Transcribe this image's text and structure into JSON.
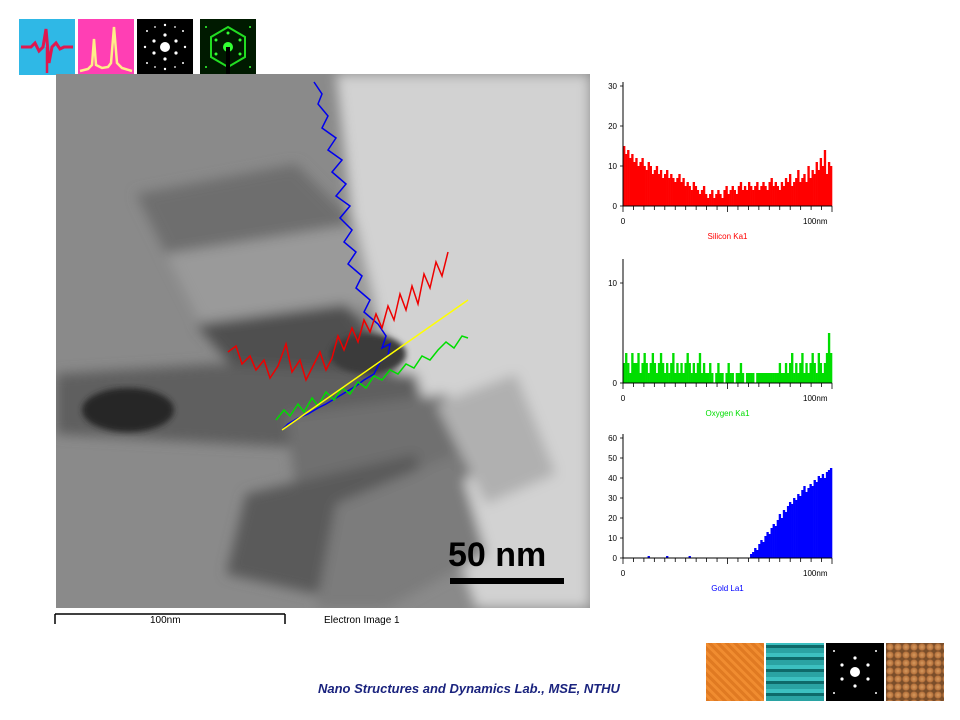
{
  "micrograph": {
    "scalebar_caption": "50 nm",
    "ruler_label": "100nm",
    "image_caption": "Electron Image 1"
  },
  "footer": {
    "lab_name": "Nano Structures and Dynamics Lab., MSE, NTHU"
  },
  "colors": {
    "silicon": "#ff0000",
    "oxygen": "#00dd00",
    "gold": "#0000ff",
    "line_trace": "#ffff00",
    "footer_text": "#1a237e"
  },
  "decor_icons": [
    "waveform-icon",
    "spectrum-peaks-icon",
    "diffraction-pattern-icon",
    "green-diffraction-icon"
  ],
  "chart_data": [
    {
      "type": "bar",
      "title": "Silicon Ka1",
      "ylim": [
        0,
        30
      ],
      "yticks": [
        0,
        10,
        20,
        30
      ],
      "xtick_labels": [
        "0",
        "100nm"
      ],
      "series": [
        {
          "name": "Silicon Ka1",
          "values": [
            15,
            13,
            14,
            12,
            13,
            11,
            12,
            10,
            11,
            12,
            10,
            9,
            11,
            10,
            8,
            9,
            10,
            8,
            9,
            7,
            8,
            9,
            7,
            8,
            7,
            6,
            7,
            8,
            6,
            7,
            5,
            6,
            5,
            4,
            6,
            5,
            4,
            3,
            4,
            5,
            3,
            2,
            3,
            4,
            2,
            3,
            4,
            3,
            2,
            4,
            5,
            3,
            4,
            5,
            4,
            3,
            5,
            6,
            4,
            5,
            4,
            6,
            5,
            4,
            5,
            6,
            4,
            5,
            6,
            5,
            4,
            6,
            7,
            5,
            6,
            5,
            4,
            6,
            5,
            7,
            6,
            8,
            5,
            6,
            7,
            9,
            6,
            7,
            8,
            6,
            10,
            7,
            9,
            8,
            11,
            9,
            12,
            10,
            14,
            8,
            11,
            10
          ]
        }
      ]
    },
    {
      "type": "bar",
      "title": "Oxygen Ka1",
      "ylim": [
        0,
        12
      ],
      "yticks": [
        0,
        10
      ],
      "xtick_labels": [
        "0",
        "100nm"
      ],
      "series": [
        {
          "name": "Oxygen Ka1",
          "values": [
            2,
            3,
            2,
            1,
            3,
            2,
            2,
            3,
            1,
            2,
            3,
            2,
            1,
            2,
            3,
            2,
            1,
            2,
            3,
            2,
            1,
            2,
            1,
            2,
            3,
            1,
            2,
            1,
            2,
            1,
            2,
            3,
            2,
            1,
            2,
            1,
            2,
            3,
            1,
            2,
            1,
            1,
            2,
            1,
            0,
            1,
            2,
            1,
            1,
            0,
            1,
            2,
            1,
            1,
            0,
            1,
            1,
            2,
            1,
            0,
            1,
            1,
            1,
            1,
            0,
            1,
            1,
            1,
            1,
            1,
            1,
            1,
            1,
            1,
            1,
            1,
            2,
            1,
            1,
            2,
            1,
            2,
            3,
            1,
            2,
            1,
            2,
            3,
            1,
            2,
            1,
            2,
            3,
            2,
            1,
            3,
            2,
            1,
            2,
            3,
            5,
            3
          ]
        }
      ]
    },
    {
      "type": "bar",
      "title": "Gold La1",
      "ylim": [
        0,
        60
      ],
      "yticks": [
        0,
        10,
        20,
        30,
        40,
        50,
        60
      ],
      "xtick_labels": [
        "0",
        "100nm"
      ],
      "series": [
        {
          "name": "Gold La1",
          "values": [
            0,
            0,
            0,
            0,
            0,
            0,
            0,
            0,
            0,
            0,
            0,
            0,
            1,
            0,
            0,
            0,
            0,
            0,
            0,
            0,
            0,
            1,
            0,
            0,
            0,
            0,
            0,
            0,
            0,
            0,
            0,
            0,
            1,
            0,
            0,
            0,
            0,
            0,
            0,
            0,
            0,
            0,
            0,
            0,
            0,
            0,
            0,
            0,
            0,
            0,
            0,
            0,
            0,
            0,
            0,
            0,
            0,
            0,
            0,
            0,
            0,
            0,
            2,
            3,
            5,
            4,
            7,
            9,
            8,
            11,
            13,
            12,
            15,
            17,
            16,
            19,
            22,
            20,
            24,
            23,
            26,
            28,
            27,
            30,
            29,
            32,
            31,
            34,
            36,
            33,
            35,
            37,
            36,
            39,
            38,
            41,
            40,
            42,
            40,
            43,
            44,
            45
          ]
        }
      ]
    }
  ]
}
